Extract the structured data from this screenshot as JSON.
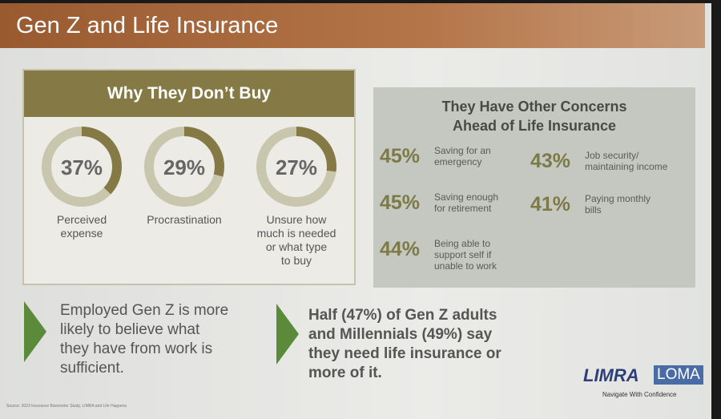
{
  "header": {
    "title": "Gen Z and Life Insurance"
  },
  "why_panel": {
    "title": "Why They Don’t Buy",
    "donuts": [
      {
        "value": 37,
        "label": "37%",
        "caption": "Perceived\nexpense"
      },
      {
        "value": 29,
        "label": "29%",
        "caption": "Procrastination"
      },
      {
        "value": 27,
        "label": "27%",
        "caption": "Unsure how\nmuch is needed\nor what type\nto buy"
      }
    ]
  },
  "concerns_panel": {
    "title": "They Have Other Concerns\nAhead of Life Insurance",
    "items": [
      {
        "percent": "45%",
        "text": "Saving for an\nemergency"
      },
      {
        "percent": "43%",
        "text": "Job security/\nmaintaining income"
      },
      {
        "percent": "45%",
        "text": "Saving enough\nfor retirement"
      },
      {
        "percent": "41%",
        "text": "Paying monthly\nbills"
      },
      {
        "percent": "44%",
        "text": "Being able to\nsupport self if\nunable to work"
      }
    ]
  },
  "callouts": [
    "Employed Gen Z is more\nlikely to believe what\nthey have from work is\nsufficient.",
    "Half (47%) of Gen Z adults\nand Millennials (49%) say\nthey need life insurance or\nmore of it."
  ],
  "footer": {
    "source": "Source: 2023 Insurance Barometer Study, LIMRA and Life Happens",
    "logo_left": "LIMRA",
    "logo_right": "LOMA",
    "tagline": "Navigate With Confidence"
  }
}
